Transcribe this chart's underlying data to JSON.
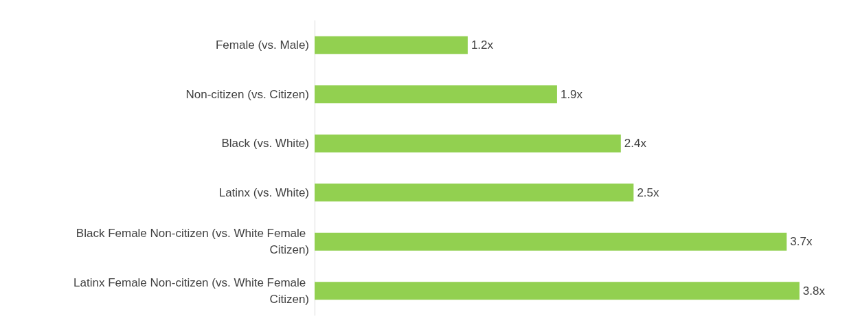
{
  "chart_data": {
    "type": "bar",
    "orientation": "horizontal",
    "categories": [
      "Female (vs. Male)",
      "Non-citizen (vs. Citizen)",
      "Black (vs. White)",
      "Latinx (vs. White)",
      "Black Female Non-citizen (vs. White Female Citizen)",
      "Latinx Female Non-citizen (vs. White Female Citizen)"
    ],
    "values": [
      1.2,
      1.9,
      2.4,
      2.5,
      3.7,
      3.8
    ],
    "value_labels": [
      "1.2x",
      "1.9x",
      "2.4x",
      "2.5x",
      "3.7x",
      "3.8x"
    ],
    "color": "#92d050"
  }
}
